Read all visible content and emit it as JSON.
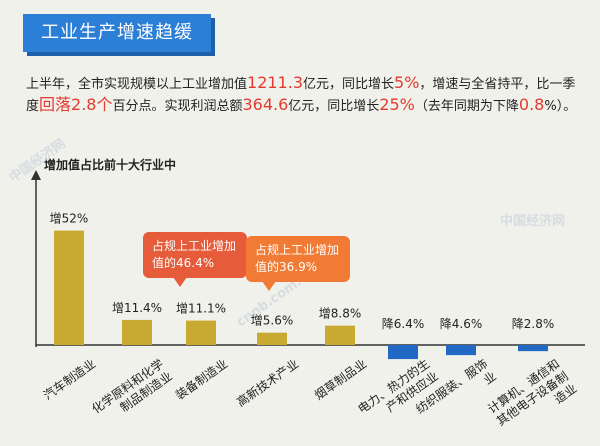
{
  "header": {
    "title": "工业生产增速趋缓"
  },
  "summary": {
    "p1": "上半年，全市实现规模以上工业增加值",
    "v1": "1211.3",
    "p2": "亿元，同比增长",
    "v2": "5%",
    "p3": "，增速与全省持平，比一季度",
    "v3": "回落2.8个",
    "p4": "百分点。实现利润总额",
    "v4": "364.6",
    "p5": "亿元，同比增长",
    "v5": "25%",
    "p6": "（去年同期为下降",
    "v6": "0.8",
    "p7": "%）。"
  },
  "chart_data": {
    "type": "bar",
    "title": "增加值占比前十大行业中",
    "categories": [
      "汽车制造业",
      "化学原料和化学制品制造业",
      "装备制造业",
      "高新技术产业",
      "烟草制品业",
      "电力、热力的生产和供应业",
      "纺织服装、服饰业",
      "计算机、通信和其他电子设备制造业"
    ],
    "series": [
      {
        "values": [
          52,
          11.4,
          11.1,
          5.6,
          8.8,
          -6.4,
          -4.6,
          -2.8
        ]
      }
    ],
    "data_labels": [
      "增52%",
      "增11.4%",
      "增11.1%",
      "增5.6%",
      "增8.8%",
      "降6.4%",
      "降4.6%",
      "降2.8%"
    ],
    "colors": {
      "positive": "#c8aa32",
      "negative": "#2169c4",
      "highlight": "#e33a2e"
    }
  },
  "callouts": [
    {
      "text": "占规上工业增加值的46.4%"
    },
    {
      "text": "占规上工业增加值的36.9%"
    }
  ],
  "watermarks": [
    "中国经济网",
    "cnnb.com.cn"
  ]
}
